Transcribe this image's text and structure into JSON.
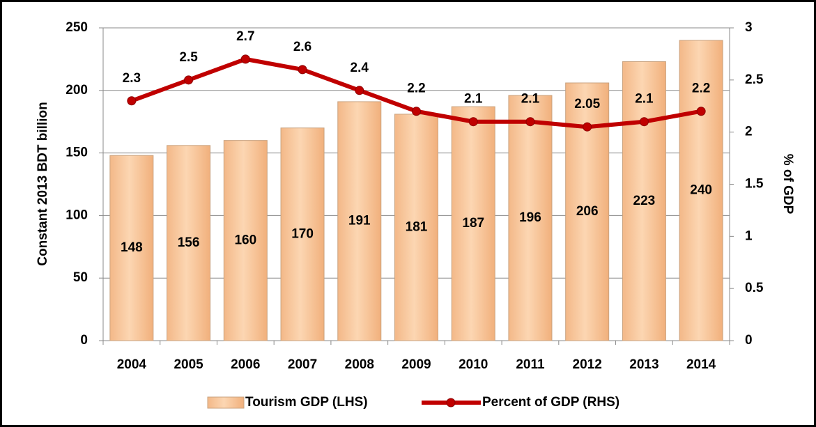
{
  "chart_data": {
    "type": "bar",
    "categories": [
      "2004",
      "2005",
      "2006",
      "2007",
      "2008",
      "2009",
      "2010",
      "2011",
      "2012",
      "2013",
      "2014"
    ],
    "series": [
      {
        "name": "Tourism GDP (LHS)",
        "type": "bar",
        "color": "#f8c597",
        "values": [
          148,
          156,
          160,
          170,
          191,
          181,
          187,
          196,
          206,
          223,
          240
        ]
      },
      {
        "name": "Percent of GDP (RHS)",
        "type": "line",
        "axis": "y2",
        "color": "#c00000",
        "values": [
          2.3,
          2.5,
          2.7,
          2.6,
          2.4,
          2.2,
          2.1,
          2.1,
          2.05,
          2.1,
          2.2
        ]
      }
    ],
    "ylabel": "Constant 2013 BDT billion",
    "y2label": "% of GDP",
    "ylim": [
      0,
      250
    ],
    "yticks": [
      0,
      50,
      100,
      150,
      200,
      250
    ],
    "y2lim": [
      0,
      3
    ],
    "y2ticks": [
      0,
      0.5,
      1,
      1.5,
      2,
      2.5,
      3
    ],
    "grid": true,
    "legend": "bottom"
  }
}
